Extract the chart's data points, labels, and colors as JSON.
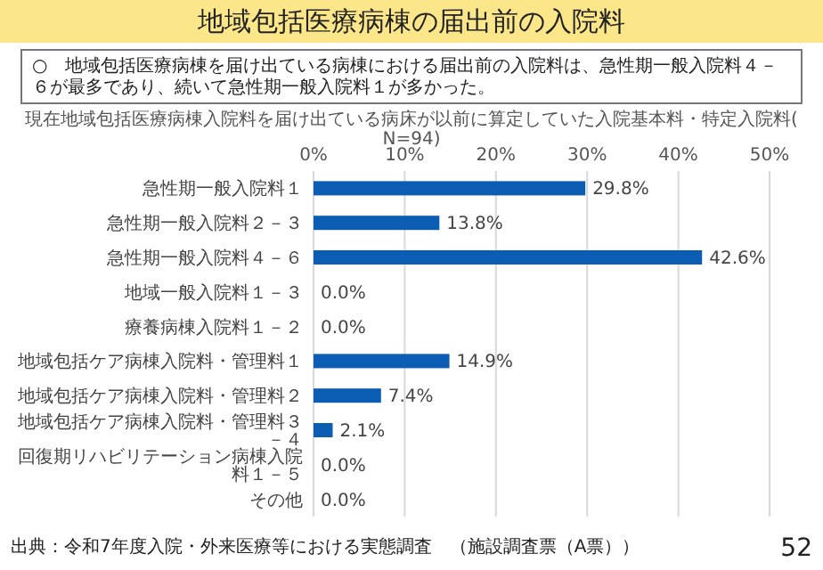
{
  "chart_data": {
    "type": "bar",
    "orientation": "horizontal",
    "title": "地域包括医療病棟の届出前の入院料",
    "subtitle": "現在地域包括医療病棟入院料を届け出ている病床が以前に算定していた入院基本料・特定入院料(N=94)",
    "annotations": [
      "○　地域包括医療病棟を届け出ている病棟における届出前の入院料は、急性期一般入院料４－６が最多であり、続いて急性期一般入院料１が多かった。",
      "出典：令和7年度入院・外来医療等における実態調査　（施設調査票（A票））",
      "52"
    ],
    "categories": [
      "急性期一般入院料１",
      "急性期一般入院料２－３",
      "急性期一般入院料４－６",
      "地域一般入院料１－３",
      "療養病棟入院料１－２",
      "地域包括ケア病棟入院料・管理料１",
      "地域包括ケア病棟入院料・管理料２",
      "地域包括ケア病棟入院料・管理料３－４",
      "回復期リハビリテーション病棟入院料１－５",
      "その他"
    ],
    "values": [
      29.8,
      13.8,
      42.6,
      0,
      0,
      14.9,
      7.4,
      2.1,
      0,
      0
    ],
    "value_labels": [
      "29.8%",
      "13.8%",
      "42.6%",
      "0.0%",
      "0.0%",
      "14.9%",
      "7.4%",
      "2.1%",
      "0.0%",
      "0.0%"
    ],
    "color": "#0b5cb3",
    "xlim": [
      0,
      50
    ],
    "xticks": [
      {
        "value": 0,
        "label": "0%"
      },
      {
        "value": 10,
        "label": "10%"
      },
      {
        "value": 20,
        "label": "20%"
      },
      {
        "value": 30,
        "label": "30%"
      },
      {
        "value": 40,
        "label": "40%"
      },
      {
        "value": 50,
        "label": "50%"
      }
    ],
    "grid": "x"
  }
}
